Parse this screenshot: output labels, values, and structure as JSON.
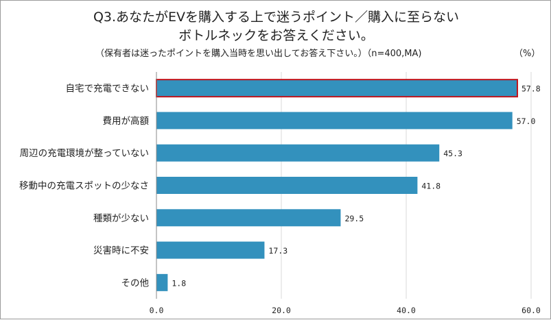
{
  "chart_data": {
    "type": "bar",
    "orientation": "horizontal",
    "title_line1": "Q3.あなたがEVを購入する上で迷うポイント／購入に至らない",
    "title_line2": "ボトルネックをお答えください。",
    "subtitle": "（保有者は迷ったポイントを購入当時を思い出してお答え下さい。）（n=400,MA)",
    "unit_label": "（%）",
    "categories": [
      "自宅で充電できない",
      "費用が高額",
      "周辺の充電環境が整っていない",
      "移動中の充電スポットの少なさ",
      "種類が少ない",
      "災害時に不安",
      "その他"
    ],
    "values": [
      57.8,
      57.0,
      45.3,
      41.8,
      29.5,
      17.3,
      1.8
    ],
    "value_labels": [
      "57.8",
      "57.0",
      "45.3",
      "41.8",
      "29.5",
      "17.3",
      "1.8"
    ],
    "highlighted_category": "自宅で充電できない",
    "xlim": [
      0,
      60
    ],
    "xticks": [
      0,
      20,
      40,
      60
    ],
    "xtick_labels": [
      "0.0",
      "20.0",
      "40.0",
      "60.0"
    ],
    "grid": true,
    "colors": {
      "bar": "#3391bd",
      "highlight_border": "#c0141c",
      "grid": "#d9d9d9",
      "axis": "#888888"
    }
  }
}
